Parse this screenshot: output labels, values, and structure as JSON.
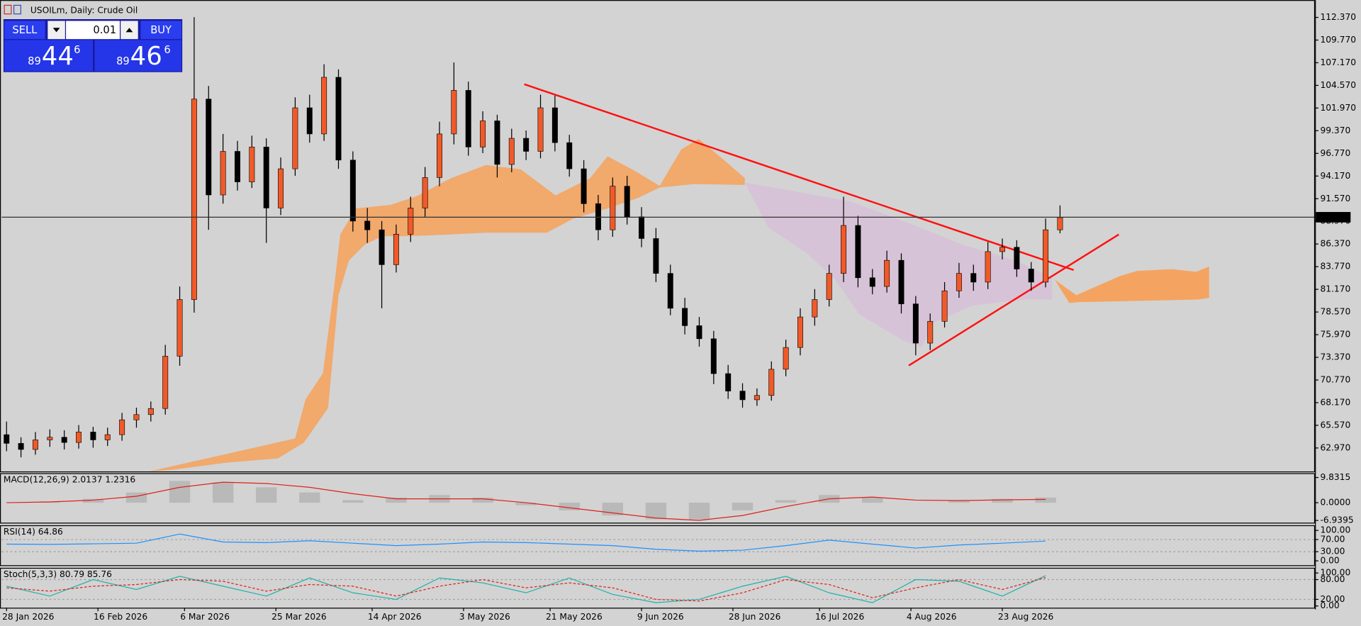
{
  "header": {
    "symbol": "USOILm, Daily:  Crude Oil",
    "sell": "SELL",
    "buy": "BUY",
    "volume": "0.01",
    "bid": {
      "big": "89",
      "main": "44",
      "small": "6"
    },
    "ask": {
      "big": "89",
      "main": "46",
      "small": "6"
    }
  },
  "chart_data": [
    {
      "type": "candlestick",
      "up_color": "#f05a28",
      "down_color": "#000000",
      "xlim": [
        -1,
        272
      ],
      "ylim": [
        60.28,
        114.36
      ],
      "last_price": 89.446,
      "xticks": [
        {
          "value": 0,
          "label": "28 Jan 2026"
        },
        {
          "value": 19,
          "label": "16 Feb 2026"
        },
        {
          "value": 37,
          "label": "6 Mar 2026"
        },
        {
          "value": 56,
          "label": "25 Mar 2026"
        },
        {
          "value": 76,
          "label": "14 Apr 2026"
        },
        {
          "value": 95,
          "label": "3 May 2026"
        },
        {
          "value": 113,
          "label": "21 May 2026"
        },
        {
          "value": 132,
          "label": "9 Jun 2026"
        },
        {
          "value": 151,
          "label": "28 Jun 2026"
        },
        {
          "value": 169,
          "label": "16 Jul 2026"
        },
        {
          "value": 188,
          "label": "4 Aug 2026"
        },
        {
          "value": 207,
          "label": "23 Aug 2026"
        }
      ],
      "yticks": [
        {
          "value": 112.37,
          "label": "112.370"
        },
        {
          "value": 109.77,
          "label": "109.770"
        },
        {
          "value": 107.17,
          "label": "107.170"
        },
        {
          "value": 104.57,
          "label": "104.570"
        },
        {
          "value": 101.97,
          "label": "101.970"
        },
        {
          "value": 99.37,
          "label": "99.370"
        },
        {
          "value": 96.77,
          "label": "96.770"
        },
        {
          "value": 94.17,
          "label": "94.170"
        },
        {
          "value": 91.57,
          "label": "91.570"
        },
        {
          "value": 88.97,
          "label": "88.970"
        },
        {
          "value": 86.37,
          "label": "86.370"
        },
        {
          "value": 83.77,
          "label": "83.770"
        },
        {
          "value": 81.17,
          "label": "81.170"
        },
        {
          "value": 78.57,
          "label": "78.570"
        },
        {
          "value": 75.97,
          "label": "75.970"
        },
        {
          "value": 73.37,
          "label": "73.370"
        },
        {
          "value": 70.77,
          "label": "70.770"
        },
        {
          "value": 68.17,
          "label": "68.170"
        },
        {
          "value": 65.57,
          "label": "65.570"
        },
        {
          "value": 62.97,
          "label": "62.970"
        }
      ],
      "x": [
        0,
        3,
        6,
        9,
        12,
        15,
        18,
        21,
        24,
        27,
        30,
        33,
        36,
        39,
        42,
        45,
        48,
        51,
        54,
        57,
        60,
        63,
        66,
        69,
        72,
        75,
        78,
        81,
        84,
        87,
        90,
        93,
        96,
        99,
        102,
        105,
        108,
        111,
        114,
        117,
        120,
        123,
        126,
        129,
        132,
        135,
        138,
        141,
        144,
        147,
        150,
        153,
        156,
        159,
        162,
        165,
        168,
        171,
        174,
        177,
        180,
        183,
        186,
        189,
        192,
        195,
        198,
        201,
        204,
        207,
        210,
        213,
        216,
        219
      ],
      "open": [
        64.5,
        63.5,
        62.8,
        63.9,
        64.2,
        63.6,
        64.8,
        63.9,
        64.5,
        66.2,
        66.8,
        67.5,
        73.5,
        80.0,
        103.0,
        92.0,
        97.0,
        93.5,
        97.5,
        90.5,
        95.0,
        102.0,
        99.0,
        105.5,
        96.0,
        89.0,
        88.0,
        84.0,
        87.5,
        90.5,
        94.0,
        99.0,
        104.0,
        97.5,
        100.5,
        95.5,
        98.5,
        97.0,
        102.0,
        98.0,
        95.0,
        91.0,
        88.0,
        93.0,
        89.5,
        87.0,
        83.0,
        79.0,
        77.0,
        75.5,
        71.5,
        69.5,
        68.5,
        69.0,
        72.0,
        74.5,
        78.0,
        80.0,
        83.0,
        88.5,
        82.5,
        81.5,
        84.5,
        79.5,
        75.0,
        77.5,
        81.0,
        83.0,
        82.0,
        85.5,
        86.0,
        83.5,
        82.0,
        88.0
      ],
      "high": [
        66.0,
        64.2,
        64.8,
        65.1,
        65.0,
        65.6,
        65.4,
        65.3,
        67.0,
        67.6,
        68.3,
        74.8,
        81.5,
        112.4,
        104.5,
        99.0,
        98.2,
        98.8,
        98.5,
        96.3,
        103.2,
        103.5,
        107.0,
        106.4,
        97.0,
        90.5,
        89.0,
        88.6,
        91.8,
        95.2,
        100.4,
        107.2,
        105.0,
        101.6,
        101.2,
        99.6,
        99.4,
        103.5,
        103.4,
        98.9,
        96.0,
        92.0,
        94.0,
        94.2,
        90.6,
        88.2,
        84.0,
        80.2,
        78.0,
        76.4,
        72.5,
        70.4,
        69.8,
        72.9,
        75.4,
        79.0,
        81.2,
        84.0,
        91.8,
        89.6,
        83.5,
        85.6,
        85.3,
        80.4,
        78.4,
        82.0,
        84.2,
        84.0,
        86.6,
        87.0,
        86.8,
        84.3,
        89.3,
        90.8
      ],
      "low": [
        62.6,
        61.9,
        62.2,
        63.1,
        62.8,
        62.9,
        63.0,
        63.2,
        63.8,
        65.3,
        66.0,
        66.8,
        72.4,
        78.5,
        88.0,
        91.0,
        92.5,
        92.8,
        86.5,
        89.7,
        94.2,
        98.0,
        98.2,
        95.0,
        87.8,
        86.5,
        79.0,
        83.1,
        86.6,
        89.5,
        93.0,
        97.8,
        96.5,
        96.8,
        94.0,
        94.6,
        96.0,
        96.2,
        97.0,
        94.1,
        90.0,
        86.8,
        87.2,
        88.6,
        86.0,
        82.0,
        78.2,
        76.0,
        74.6,
        70.3,
        68.6,
        67.6,
        67.8,
        68.4,
        71.2,
        73.6,
        77.0,
        79.2,
        82.0,
        81.4,
        80.6,
        80.8,
        78.4,
        73.6,
        74.2,
        76.8,
        80.2,
        81.0,
        81.2,
        84.6,
        82.6,
        81.0,
        81.4,
        87.6
      ],
      "close": [
        63.5,
        62.8,
        63.9,
        64.2,
        63.6,
        64.8,
        63.9,
        64.5,
        66.2,
        66.8,
        67.5,
        73.5,
        80.0,
        103.0,
        92.0,
        97.0,
        93.5,
        97.5,
        90.5,
        95.0,
        102.0,
        99.0,
        105.5,
        96.0,
        89.0,
        88.0,
        84.0,
        87.5,
        90.5,
        94.0,
        99.0,
        104.0,
        97.5,
        100.5,
        95.5,
        98.5,
        97.0,
        102.0,
        98.0,
        95.0,
        91.0,
        88.0,
        93.0,
        89.5,
        87.0,
        83.0,
        79.0,
        77.0,
        75.5,
        71.5,
        69.5,
        68.5,
        69.0,
        72.0,
        74.5,
        78.0,
        80.0,
        83.0,
        88.5,
        82.5,
        81.5,
        84.5,
        79.5,
        75.0,
        77.5,
        81.0,
        83.0,
        82.0,
        85.5,
        86.0,
        83.5,
        82.0,
        88.0,
        89.4
      ]
    },
    {
      "type": "macd",
      "title": "MACD(12,26,9) 2.0137 1.2316",
      "xlim": [
        -1,
        272
      ],
      "ylim": [
        -7.8,
        11.53
      ],
      "yticks": [
        9.8315,
        {
          "value": 0,
          "label": "0.0000"
        },
        -6.9395
      ],
      "x": [
        0,
        9,
        18,
        27,
        36,
        45,
        54,
        63,
        72,
        81,
        90,
        99,
        108,
        117,
        126,
        135,
        144,
        153,
        162,
        171,
        180,
        189,
        198,
        207,
        216
      ],
      "series": [
        {
          "color": "#a9a9a9",
          "values": [
            0,
            0.5,
            1.5,
            4,
            8.5,
            8,
            6,
            4,
            1,
            2,
            3,
            2,
            -1,
            -3,
            -5,
            -6.5,
            -6.5,
            -3,
            1,
            3,
            2,
            0,
            1,
            1.5,
            2
          ]
        },
        {
          "color": "#e0201a",
          "values": [
            0,
            0.3,
            1,
            2.5,
            6,
            8,
            7.5,
            6,
            3.5,
            1.5,
            1.5,
            1.5,
            0,
            -2,
            -4,
            -6,
            -6.9,
            -5,
            -1.5,
            1.5,
            2.2,
            1,
            0.8,
            1.1,
            1.3
          ]
        }
      ]
    },
    {
      "type": "line",
      "title": "RSI(14) 64.86",
      "xlim": [
        -1,
        272
      ],
      "ylim": [
        -14.3,
        117
      ],
      "yticks": [
        {
          "value": 100,
          "label": "100.00"
        },
        {
          "value": 70,
          "label": "70.00"
        },
        {
          "value": 30,
          "label": "30.00"
        },
        {
          "value": 0,
          "label": "0.00"
        }
      ],
      "levels": [
        70,
        30
      ],
      "x": [
        0,
        9,
        18,
        27,
        36,
        45,
        54,
        63,
        72,
        81,
        90,
        99,
        108,
        117,
        126,
        135,
        144,
        153,
        162,
        171,
        180,
        189,
        198,
        207,
        216
      ],
      "series": [
        {
          "color": "#1e90ff",
          "values": [
            55,
            54,
            56,
            58,
            88,
            62,
            60,
            66,
            58,
            50,
            55,
            62,
            60,
            55,
            50,
            38,
            32,
            35,
            50,
            68,
            55,
            42,
            52,
            58,
            65
          ]
        }
      ]
    },
    {
      "type": "line",
      "title": "Stoch(5,3,3) 80.79 85.76",
      "xlim": [
        -1,
        272
      ],
      "ylim": [
        -5.3,
        115.8
      ],
      "yticks": [
        {
          "value": 100,
          "label": "100.00"
        },
        {
          "value": 80,
          "label": "80.00"
        },
        {
          "value": 20,
          "label": "20.00"
        },
        {
          "value": 0,
          "label": "0.00"
        }
      ],
      "levels": [
        80,
        20
      ],
      "x": [
        0,
        9,
        18,
        27,
        36,
        45,
        54,
        63,
        72,
        81,
        90,
        99,
        108,
        117,
        126,
        135,
        144,
        153,
        162,
        171,
        180,
        189,
        198,
        207,
        216
      ],
      "series": [
        {
          "color": "#20b2aa",
          "values": [
            60,
            30,
            80,
            50,
            90,
            60,
            30,
            85,
            40,
            20,
            85,
            70,
            40,
            85,
            35,
            10,
            20,
            60,
            90,
            40,
            10,
            80,
            75,
            30,
            92
          ]
        },
        {
          "color": "#e0201a",
          "dashed": true,
          "values": [
            55,
            45,
            60,
            65,
            80,
            75,
            45,
            65,
            60,
            30,
            60,
            80,
            55,
            70,
            55,
            20,
            15,
            40,
            80,
            65,
            25,
            55,
            80,
            50,
            86
          ]
        }
      ]
    }
  ]
}
